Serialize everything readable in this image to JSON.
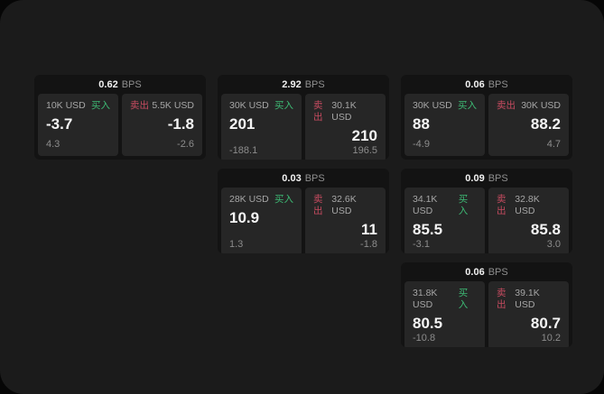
{
  "labels": {
    "bps": "BPS",
    "buy": "买入",
    "sell": "卖出"
  },
  "colors": {
    "page_background": "#1b1b1b",
    "card_background": "#131313",
    "panel_background": "#262626",
    "buy_green": "#3dba74",
    "sell_red": "#c64b60"
  },
  "cards": [
    {
      "row": 1,
      "col": 1,
      "bps": "0.62",
      "buy": {
        "amount": "10K USD",
        "value": "-3.7",
        "delta": "4.3"
      },
      "sell": {
        "amount": "5.5K USD",
        "value": "-1.8",
        "delta": "-2.6"
      }
    },
    {
      "row": 1,
      "col": 2,
      "bps": "2.92",
      "buy": {
        "amount": "30K USD",
        "value": "201",
        "delta": "-188.1"
      },
      "sell": {
        "amount": "30.1K USD",
        "value": "210",
        "delta": "196.5"
      }
    },
    {
      "row": 1,
      "col": 3,
      "bps": "0.06",
      "buy": {
        "amount": "30K USD",
        "value": "88",
        "delta": "-4.9"
      },
      "sell": {
        "amount": "30K USD",
        "value": "88.2",
        "delta": "4.7"
      }
    },
    {
      "row": 2,
      "col": 2,
      "bps": "0.03",
      "buy": {
        "amount": "28K USD",
        "value": "10.9",
        "delta": "1.3"
      },
      "sell": {
        "amount": "32.6K USD",
        "value": "11",
        "delta": "-1.8"
      }
    },
    {
      "row": 2,
      "col": 3,
      "bps": "0.09",
      "buy": {
        "amount": "34.1K USD",
        "value": "85.5",
        "delta": "-3.1"
      },
      "sell": {
        "amount": "32.8K USD",
        "value": "85.8",
        "delta": "3.0"
      }
    },
    {
      "row": 3,
      "col": 3,
      "bps": "0.06",
      "buy": {
        "amount": "31.8K USD",
        "value": "80.5",
        "delta": "-10.8"
      },
      "sell": {
        "amount": "39.1K USD",
        "value": "80.7",
        "delta": "10.2"
      }
    }
  ]
}
